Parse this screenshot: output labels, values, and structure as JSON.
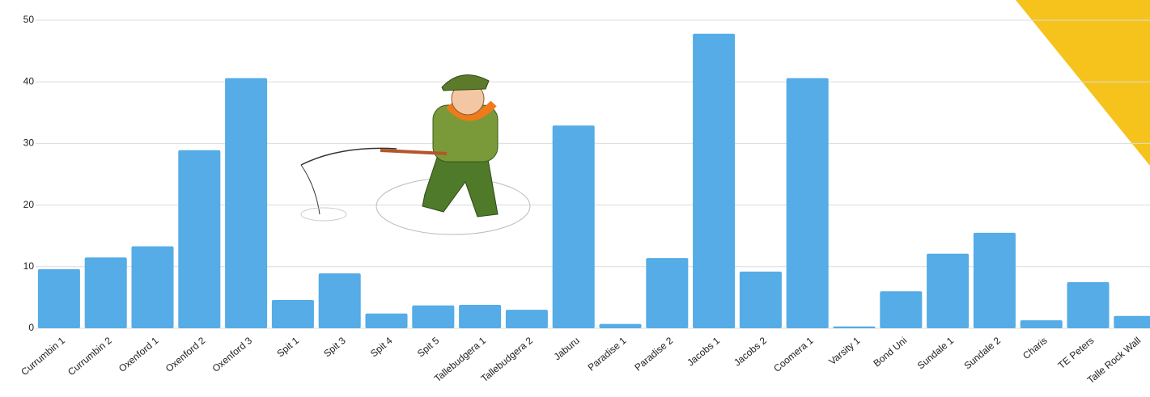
{
  "chart_data": {
    "type": "bar",
    "categories": [
      "Currumbin 1",
      "Currumbin 2",
      "Oxenford 1",
      "Oxenford 2",
      "Oxenford 3",
      "Spit 1",
      "Spit 3",
      "Spit 4",
      "Spit 5",
      "Tallebudgera 1",
      "Tallebudgera 2",
      "Jaburu",
      "Paradise 1",
      "Paradise 2",
      "Jacobs 1",
      "Jacobs 2",
      "Coomera 1",
      "Varsity 1",
      "Bond Uni",
      "Sundale 1",
      "Sundale 2",
      "Charis",
      "TE Peters",
      "Talle Rock Wall"
    ],
    "values": [
      9.6,
      11.5,
      13.3,
      28.9,
      40.6,
      4.6,
      8.9,
      2.4,
      3.7,
      3.8,
      3.0,
      32.9,
      0.7,
      11.4,
      47.8,
      9.2,
      40.6,
      0.3,
      6.0,
      12.1,
      15.5,
      1.3,
      7.5,
      2.0
    ],
    "color": "#55ace6",
    "ylim": [
      0,
      50
    ],
    "yticks": [
      0,
      10,
      20,
      30,
      40,
      50
    ],
    "grid": true
  }
}
